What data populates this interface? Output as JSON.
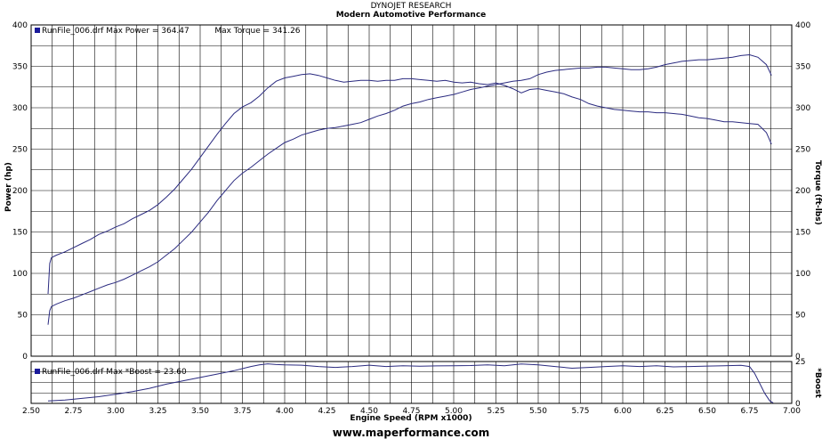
{
  "header": {
    "line1": "DYNOJET RESEARCH",
    "line2": "Modern Automotive Performance"
  },
  "footer": {
    "url": "www.maperformance.com"
  },
  "colors": {
    "trace": "#2b2b80",
    "grid": "#000000",
    "marker": "#1a1a9a"
  },
  "chart_data": [
    {
      "type": "line",
      "legend": {
        "file": "RunFile_006.drf",
        "max_power_text": "Max Power = 364.47",
        "max_torque_text": "Max Torque = 341.26"
      },
      "xlabel": "Engine Speed (RPM x1000)",
      "ylabel": "Power (hp)",
      "y2label": "Torque (ft-lbs)",
      "xlim": [
        2.5,
        7.0
      ],
      "ylim": [
        0,
        400
      ],
      "y2lim": [
        0,
        400
      ],
      "x_ticks": [
        "2.50",
        "2.75",
        "3.00",
        "3.25",
        "3.50",
        "3.75",
        "4.00",
        "4.25",
        "4.50",
        "4.75",
        "5.00",
        "5.25",
        "5.50",
        "5.75",
        "6.00",
        "6.25",
        "6.50",
        "6.75",
        "7.00"
      ],
      "y_ticks": [
        "0",
        "50",
        "100",
        "150",
        "200",
        "250",
        "300",
        "350",
        "400"
      ],
      "grid": true,
      "series": [
        {
          "name": "Power",
          "x": [
            2.6,
            2.61,
            2.62,
            2.65,
            2.7,
            2.75,
            2.8,
            2.85,
            2.9,
            2.95,
            3.0,
            3.05,
            3.1,
            3.15,
            3.2,
            3.25,
            3.3,
            3.35,
            3.4,
            3.45,
            3.5,
            3.55,
            3.6,
            3.65,
            3.7,
            3.75,
            3.8,
            3.85,
            3.9,
            3.95,
            4.0,
            4.05,
            4.1,
            4.15,
            4.2,
            4.25,
            4.3,
            4.35,
            4.4,
            4.45,
            4.5,
            4.55,
            4.6,
            4.65,
            4.7,
            4.75,
            4.8,
            4.85,
            4.9,
            4.95,
            5.0,
            5.05,
            5.1,
            5.15,
            5.2,
            5.25,
            5.3,
            5.35,
            5.4,
            5.45,
            5.5,
            5.55,
            5.6,
            5.65,
            5.7,
            5.75,
            5.8,
            5.85,
            5.9,
            5.95,
            6.0,
            6.05,
            6.1,
            6.15,
            6.2,
            6.25,
            6.3,
            6.35,
            6.4,
            6.45,
            6.5,
            6.55,
            6.6,
            6.65,
            6.7,
            6.75,
            6.8,
            6.85,
            6.88
          ],
          "values": [
            38,
            55,
            60,
            63,
            67,
            70,
            74,
            78,
            82,
            86,
            89,
            93,
            98,
            103,
            108,
            114,
            122,
            130,
            140,
            150,
            162,
            174,
            188,
            200,
            212,
            221,
            228,
            236,
            244,
            251,
            258,
            262,
            267,
            270,
            273,
            275,
            276,
            278,
            280,
            282,
            286,
            290,
            293,
            297,
            302,
            305,
            307,
            310,
            312,
            314,
            316,
            319,
            322,
            324,
            326,
            328,
            330,
            332,
            333,
            335,
            340,
            343,
            345,
            346,
            347,
            348,
            348,
            349,
            349,
            348,
            347,
            346,
            346,
            347,
            349,
            352,
            354,
            356,
            357,
            358,
            358,
            359,
            360,
            361,
            363,
            364,
            361,
            352,
            339
          ]
        },
        {
          "name": "Torque",
          "x": [
            2.6,
            2.61,
            2.62,
            2.65,
            2.7,
            2.75,
            2.8,
            2.85,
            2.9,
            2.95,
            3.0,
            3.05,
            3.1,
            3.15,
            3.2,
            3.25,
            3.3,
            3.35,
            3.4,
            3.45,
            3.5,
            3.55,
            3.6,
            3.65,
            3.7,
            3.75,
            3.8,
            3.85,
            3.9,
            3.95,
            4.0,
            4.05,
            4.1,
            4.15,
            4.2,
            4.25,
            4.3,
            4.35,
            4.4,
            4.45,
            4.5,
            4.55,
            4.6,
            4.65,
            4.7,
            4.75,
            4.8,
            4.85,
            4.9,
            4.95,
            5.0,
            5.05,
            5.1,
            5.15,
            5.2,
            5.25,
            5.3,
            5.35,
            5.4,
            5.45,
            5.5,
            5.55,
            5.6,
            5.65,
            5.7,
            5.75,
            5.8,
            5.85,
            5.9,
            5.95,
            6.0,
            6.05,
            6.1,
            6.15,
            6.2,
            6.25,
            6.3,
            6.35,
            6.4,
            6.45,
            6.5,
            6.55,
            6.6,
            6.65,
            6.7,
            6.75,
            6.8,
            6.85,
            6.88
          ],
          "values": [
            75,
            112,
            119,
            122,
            126,
            131,
            136,
            141,
            147,
            151,
            156,
            160,
            166,
            171,
            176,
            183,
            192,
            202,
            214,
            226,
            240,
            254,
            268,
            281,
            293,
            301,
            306,
            314,
            324,
            332,
            336,
            338,
            340,
            341,
            339,
            336,
            333,
            331,
            332,
            333,
            333,
            332,
            333,
            333,
            335,
            335,
            334,
            333,
            332,
            333,
            331,
            330,
            331,
            329,
            328,
            330,
            327,
            323,
            318,
            322,
            323,
            321,
            319,
            317,
            313,
            310,
            305,
            302,
            300,
            298,
            297,
            296,
            295,
            295,
            294,
            294,
            293,
            292,
            290,
            288,
            287,
            285,
            283,
            283,
            282,
            281,
            280,
            270,
            256
          ]
        }
      ]
    },
    {
      "type": "line",
      "legend": {
        "file": "RunFile_006.drf",
        "max_text": "Max *Boost = 23.60"
      },
      "ylabel": "*Boost",
      "xlim": [
        2.5,
        7.0
      ],
      "ylim": [
        0,
        25
      ],
      "y_ticks": [
        "0",
        "25"
      ],
      "grid": true,
      "series": [
        {
          "name": "*Boost",
          "x": [
            2.6,
            2.7,
            2.8,
            2.9,
            3.0,
            3.1,
            3.2,
            3.3,
            3.4,
            3.5,
            3.6,
            3.7,
            3.8,
            3.85,
            3.9,
            3.95,
            4.0,
            4.1,
            4.2,
            4.3,
            4.4,
            4.5,
            4.6,
            4.7,
            4.8,
            4.9,
            5.0,
            5.1,
            5.2,
            5.3,
            5.4,
            5.5,
            5.6,
            5.7,
            5.8,
            5.9,
            6.0,
            6.1,
            6.2,
            6.3,
            6.4,
            6.5,
            6.6,
            6.7,
            6.75,
            6.78,
            6.81,
            6.84,
            6.87,
            6.89
          ],
          "values": [
            1.5,
            2.0,
            3.0,
            4.0,
            5.5,
            7.0,
            9.0,
            11.5,
            13.5,
            15.5,
            17.5,
            19.5,
            22.0,
            23.0,
            23.6,
            23.2,
            23.0,
            22.8,
            22.0,
            21.5,
            22.0,
            22.8,
            22.0,
            22.5,
            22.2,
            22.4,
            22.5,
            22.6,
            23.0,
            22.5,
            23.5,
            23.0,
            22.0,
            21.0,
            21.5,
            22.0,
            22.5,
            22.0,
            22.5,
            21.8,
            22.0,
            22.3,
            22.5,
            22.7,
            22.0,
            18.0,
            12.0,
            6.0,
            1.5,
            0.3
          ]
        }
      ]
    }
  ]
}
